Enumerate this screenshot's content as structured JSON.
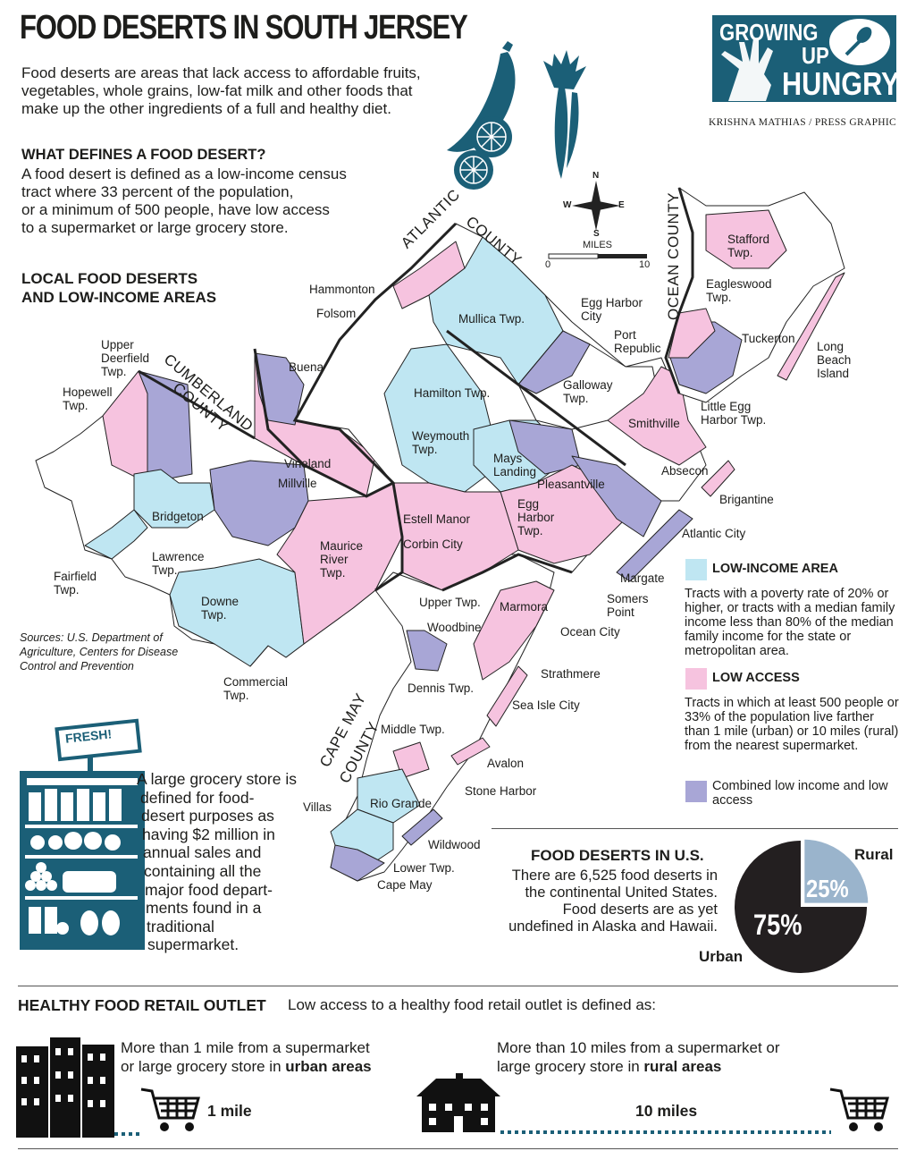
{
  "header": {
    "title": "FOOD DESERTS IN SOUTH JERSEY",
    "intro": "Food deserts are areas that lack access to affordable fruits, vegetables, whole grains, low-fat milk and other foods that make up the other ingredients of a full and healthy diet.",
    "definition_heading": "WHAT DEFINES A FOOD DESERT?",
    "definition_lines": [
      "A food desert is defined as a low-income census",
      "tract where 33 percent of the population,",
      "or a minimum of 500 people, have low access",
      "to a supermarket or large grocery store."
    ],
    "map_heading_lines": [
      "LOCAL FOOD DESERTS",
      "AND LOW-INCOME AREAS"
    ],
    "credit": "KRISHNA MATHIAS / PRESS GRAPHIC"
  },
  "logo": {
    "line1": "GROWING",
    "line2": "UP",
    "line3": "HUNGRY",
    "bg": "#1b5f77"
  },
  "colors": {
    "low_income": "#bfe6f2",
    "low_access": "#f6c3df",
    "combined": "#a8a6d6",
    "teal": "#1b5f77",
    "pie_rural": "#9ab4cc",
    "pie_urban": "#231f20"
  },
  "compass": {
    "n": "N",
    "s": "S",
    "e": "E",
    "w": "W",
    "scale_title": "MILES",
    "scale_min": "0",
    "scale_max": "10"
  },
  "map": {
    "counties": {
      "atlantic": "ATLANTIC",
      "county_word": "COUNTY",
      "ocean": "OCEAN COUNTY",
      "cumberland": "CUMBERLAND",
      "cumberland_county": "COUNTY",
      "cape_may": "CAPE MAY",
      "cape_may_county": "COUNTY"
    },
    "places": {
      "hammonton": "Hammonton",
      "folsom": "Folsom",
      "buena": "Buena",
      "mullica": "Mullica Twp.",
      "egg_harbor_city": "Egg Harbor\nCity",
      "port_republic": "Port\nRepublic",
      "galloway": "Galloway\nTwp.",
      "hamilton": "Hamilton Twp.",
      "weymouth": "Weymouth\nTwp.",
      "mays_landing": "Mays\nLanding",
      "smithville": "Smithville",
      "absecon": "Absecon",
      "pleasantville": "Pleasantville",
      "egg_harbor_twp": "Egg\nHarbor\nTwp.",
      "brigantine": "Brigantine",
      "atlantic_city": "Atlantic City",
      "margate": "Margate",
      "somers_point": "Somers\nPoint",
      "ocean_city": "Ocean City",
      "stafford": "Stafford\nTwp.",
      "eagleswood": "Eagleswood\nTwp.",
      "tuckerton": "Tuckerton",
      "long_beach": "Long\nBeach\nIsland",
      "little_egg": "Little Egg\nHarbor Twp.",
      "upper_deerfield": "Upper\nDeerfield\nTwp.",
      "hopewell": "Hopewell\nTwp.",
      "vineland": "Vineland",
      "millville": "Millville",
      "bridgeton": "Bridgeton",
      "lawrence": "Lawrence\nTwp.",
      "fairfield": "Fairfield\nTwp.",
      "downe": "Downe\nTwp.",
      "maurice": "Maurice\nRiver\nTwp.",
      "commercial": "Commercial\nTwp.",
      "estell": "Estell Manor",
      "corbin": "Corbin City",
      "upper_twp": "Upper Twp.",
      "marmora": "Marmora",
      "woodbine": "Woodbine",
      "dennis": "Dennis Twp.",
      "strathmere": "Strathmere",
      "sea_isle": "Sea Isle City",
      "middle": "Middle Twp.",
      "avalon": "Avalon",
      "stone_harbor": "Stone Harbor",
      "villas": "Villas",
      "rio_grande": "Rio Grande",
      "wildwood": "Wildwood",
      "lower_twp": "Lower Twp.",
      "cape_may": "Cape May"
    }
  },
  "legend": {
    "low_income_title": "LOW-INCOME AREA",
    "low_income_text": "Tracts with a poverty rate of 20% or higher, or tracts with a median family income less than 80% of the median family income for the state or metropolitan area.",
    "low_access_title": "LOW ACCESS",
    "low_access_text": "Tracts in which at least 500 people or 33% of the population live farther than 1 mile (urban) or 10 miles (rural) from the nearest supermarket.",
    "combined_text": "Combined low income and low access"
  },
  "sources": "Sources: U.S. Department of Agriculture, Centers for Disease Control and Prevention",
  "store": {
    "sign": "FRESH!",
    "text_lines": [
      "A large grocery store is",
      "defined for food-",
      "desert purposes as",
      "having $2 million in",
      "annual sales and",
      "containing all the",
      "major food depart-",
      "ments found in a",
      "traditional",
      "supermarket."
    ]
  },
  "us": {
    "title": "FOOD DESERTS IN U.S.",
    "text_lines": [
      "There are 6,525 food deserts in",
      "the continental United States.",
      "Food deserts are as yet",
      "undefined in Alaska and Hawaii."
    ],
    "rural_label": "Rural",
    "urban_label": "Urban",
    "rural_pct": "25%",
    "urban_pct": "75%"
  },
  "chart_data": {
    "type": "pie",
    "categories": [
      "Rural",
      "Urban"
    ],
    "values": [
      25,
      75
    ]
  },
  "outlet": {
    "title": "HEALTHY FOOD RETAIL OUTLET",
    "subtitle": "Low access to a healthy food retail outlet is defined as:",
    "urban_text": "More than 1 mile from a supermarket",
    "urban_text2_pre": "or large grocery store in ",
    "urban_text2_bold": "urban areas",
    "urban_distance": "1 mile",
    "rural_text": "More than 10 miles from a supermarket or",
    "rural_text2_pre": "large grocery store in ",
    "rural_text2_bold": "rural areas",
    "rural_distance": "10 miles"
  }
}
